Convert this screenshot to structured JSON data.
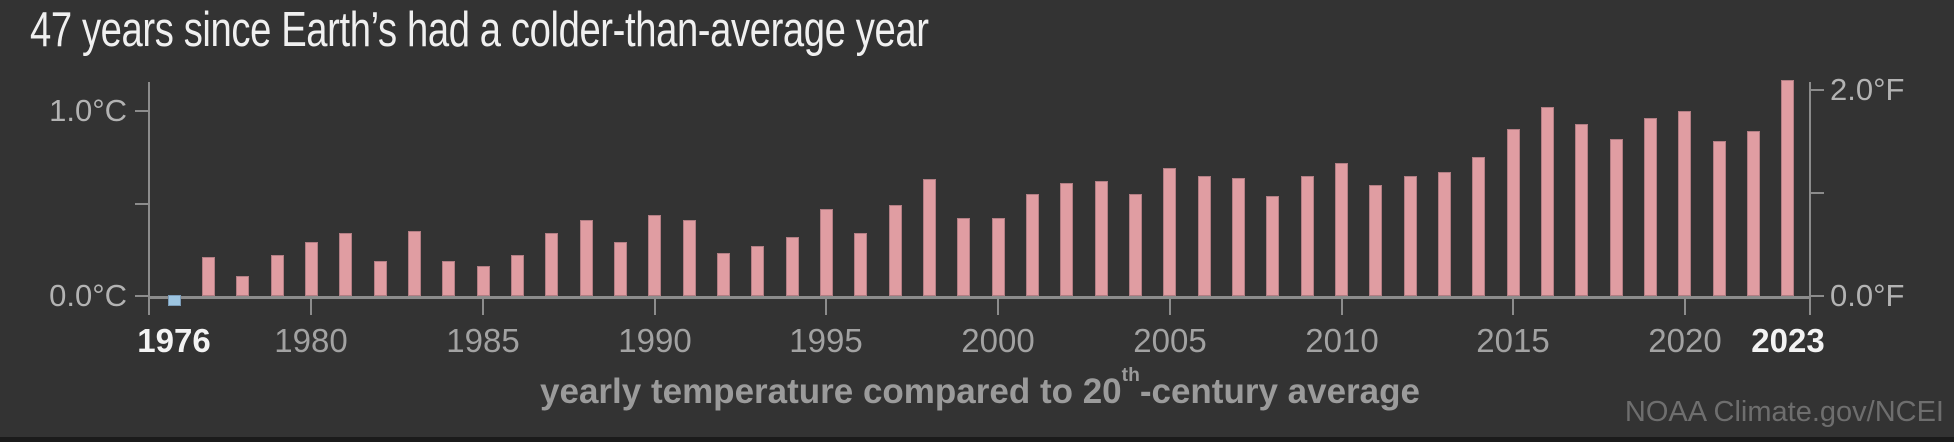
{
  "source": "NOAA Climate.gov/NCEI",
  "colors": {
    "background": "#333333",
    "axis": "#8c8c8c",
    "axis_label": "#b3b3b3",
    "year_label": "#a2a2a2",
    "year_label_emphasis": "#f3f3f3",
    "title_text": "#f0f0f0",
    "xlabel_text": "#9b9b9b",
    "source_text": "#6e6e6e",
    "warm_bar": "#e09da2",
    "warm_bar_edge": "#b37e84",
    "cold_bar": "#9dc5e1",
    "cold_bar_edge": "#7b9cb8"
  },
  "chart_data": {
    "type": "bar",
    "title": "47 years since Earth’s had a colder-than-average year",
    "xlabel": {
      "pre": "yearly temperature compared to 20",
      "sup": "th",
      "post": "-century average"
    },
    "x": [
      1976,
      1977,
      1978,
      1979,
      1980,
      1981,
      1982,
      1983,
      1984,
      1985,
      1986,
      1987,
      1988,
      1989,
      1990,
      1991,
      1992,
      1993,
      1994,
      1995,
      1996,
      1997,
      1998,
      1999,
      2000,
      2001,
      2002,
      2003,
      2004,
      2005,
      2006,
      2007,
      2008,
      2009,
      2010,
      2011,
      2012,
      2013,
      2014,
      2015,
      2016,
      2017,
      2018,
      2019,
      2020,
      2021,
      2022,
      2023
    ],
    "values": [
      -0.06,
      0.21,
      0.11,
      0.22,
      0.29,
      0.34,
      0.19,
      0.35,
      0.19,
      0.16,
      0.22,
      0.34,
      0.41,
      0.29,
      0.44,
      0.41,
      0.23,
      0.27,
      0.32,
      0.47,
      0.34,
      0.49,
      0.63,
      0.42,
      0.42,
      0.55,
      0.61,
      0.62,
      0.55,
      0.69,
      0.65,
      0.64,
      0.54,
      0.65,
      0.72,
      0.6,
      0.65,
      0.67,
      0.75,
      0.9,
      1.02,
      0.93,
      0.85,
      0.96,
      1.0,
      0.84,
      0.89,
      1.17
    ],
    "value_unit": "°C anomaly vs 20th-century average",
    "ylim_c": [
      -0.15,
      1.25
    ],
    "grid": false,
    "legend": "none",
    "left_axis_ticks": [
      {
        "label": "1.0°C",
        "value_c": 1.0
      },
      {
        "label": "",
        "value_c": 0.5
      },
      {
        "label": "0.0°C",
        "value_c": 0.0
      }
    ],
    "right_axis_ticks": [
      {
        "label": "2.0°F",
        "value_f": 2.0
      },
      {
        "label": "",
        "value_f": 1.0
      },
      {
        "label": "0.0°F",
        "value_f": 0.0
      }
    ],
    "x_tick_years": [
      1980,
      1985,
      1990,
      1995,
      2000,
      2005,
      2010,
      2015,
      2020
    ],
    "x_label_years": [
      {
        "year": 1976,
        "emphasis": true
      },
      {
        "year": 1980,
        "emphasis": false
      },
      {
        "year": 1985,
        "emphasis": false
      },
      {
        "year": 1990,
        "emphasis": false
      },
      {
        "year": 1995,
        "emphasis": false
      },
      {
        "year": 2000,
        "emphasis": false
      },
      {
        "year": 2005,
        "emphasis": false
      },
      {
        "year": 2010,
        "emphasis": false
      },
      {
        "year": 2015,
        "emphasis": false
      },
      {
        "year": 2020,
        "emphasis": false
      },
      {
        "year": 2023,
        "emphasis": true
      }
    ]
  }
}
